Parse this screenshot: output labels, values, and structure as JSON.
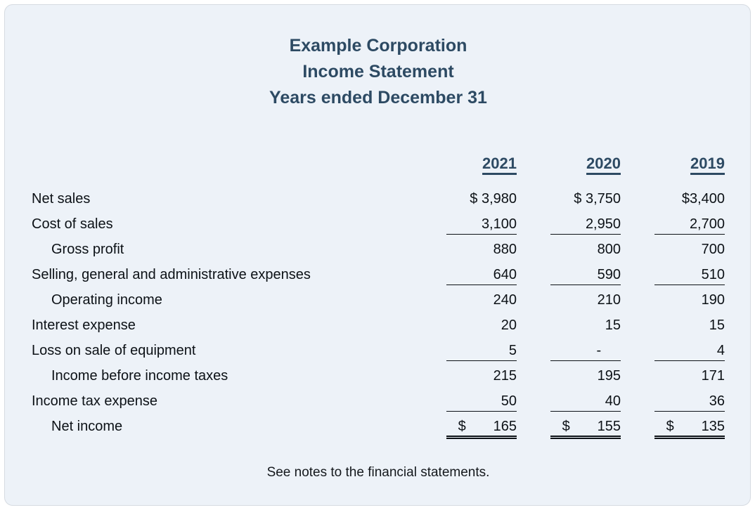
{
  "title": {
    "company": "Example Corporation",
    "statement": "Income Statement",
    "period": "Years ended December 31"
  },
  "table": {
    "columns": [
      "2021",
      "2020",
      "2019"
    ],
    "rows": [
      {
        "label": "Net sales",
        "indent": false,
        "underline": "none",
        "values": [
          "$ 3,980",
          "$ 3,750",
          "$3,400"
        ]
      },
      {
        "label": "Cost of sales",
        "indent": false,
        "underline": "single",
        "values": [
          "3,100",
          "2,950",
          "2,700"
        ]
      },
      {
        "label": "Gross profit",
        "indent": true,
        "underline": "none",
        "values": [
          "880",
          "800",
          "700"
        ]
      },
      {
        "label": "Selling, general and administrative expenses",
        "indent": false,
        "underline": "single",
        "values": [
          "640",
          "590",
          "510"
        ]
      },
      {
        "label": "Operating income",
        "indent": true,
        "underline": "none",
        "values": [
          "240",
          "210",
          "190"
        ]
      },
      {
        "label": "Interest expense",
        "indent": false,
        "underline": "none",
        "values": [
          "20",
          "15",
          "15"
        ]
      },
      {
        "label": "Loss on sale of equipment",
        "indent": false,
        "underline": "single",
        "values": [
          "5",
          "-     ",
          "4"
        ]
      },
      {
        "label": "Income before income taxes",
        "indent": true,
        "underline": "none",
        "values": [
          "215",
          "195",
          "171"
        ]
      },
      {
        "label": "Income tax expense",
        "indent": false,
        "underline": "single",
        "values": [
          "50",
          "40",
          "36"
        ]
      },
      {
        "label": "Net income",
        "indent": true,
        "underline": "double",
        "values": [
          "$       165",
          "$       155",
          "$       135"
        ]
      }
    ]
  },
  "footer": "See notes to the financial statements.",
  "colors": {
    "accent": "#2d4a63",
    "card_bg": "#edf2f8",
    "card_border": "#d6dbe1",
    "text": "#0c1116"
  }
}
